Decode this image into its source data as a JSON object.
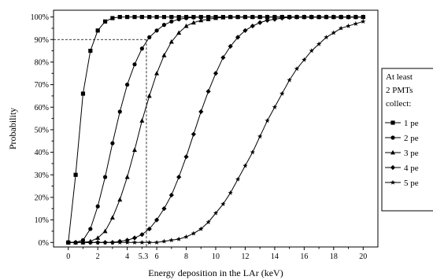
{
  "chart_data": {
    "type": "line",
    "xlabel": "Energy deposition in the LAr (keV)",
    "ylabel": "Probability",
    "xlim": [
      -1,
      21
    ],
    "ylim": [
      -0.02,
      1.03
    ],
    "xticks": [
      "0",
      "2",
      "4",
      "6",
      "8",
      "10",
      "12",
      "14",
      "16",
      "18",
      "20"
    ],
    "yticks": [
      "0%",
      "10%",
      "20%",
      "30%",
      "40%",
      "50%",
      "60%",
      "70%",
      "80%",
      "90%",
      "100%"
    ],
    "annotation": {
      "x": 5.3,
      "y": 0.9,
      "x_label": "5.3",
      "style": "dashed"
    },
    "legend": {
      "title_lines": [
        "At least",
        "2 PMTs",
        "collect:"
      ],
      "placement": "right"
    },
    "x": [
      0,
      0.5,
      1,
      1.5,
      2,
      2.5,
      3,
      3.5,
      4,
      4.5,
      5,
      5.5,
      6,
      6.5,
      7,
      7.5,
      8,
      8.5,
      9,
      9.5,
      10,
      10.5,
      11,
      11.5,
      12,
      12.5,
      13,
      13.5,
      14,
      14.5,
      15,
      15.5,
      16,
      16.5,
      17,
      17.5,
      18,
      18.5,
      19,
      19.5,
      20
    ],
    "series": [
      {
        "name": "1 pe",
        "marker": "square",
        "values": [
          0,
          0.3,
          0.66,
          0.85,
          0.94,
          0.98,
          0.995,
          1,
          1,
          1,
          1,
          1,
          1,
          1,
          1,
          1,
          1,
          1,
          1,
          1,
          1,
          1,
          1,
          1,
          1,
          1,
          1,
          1,
          1,
          1,
          1,
          1,
          1,
          1,
          1,
          1,
          1,
          1,
          1,
          1,
          1
        ]
      },
      {
        "name": "2 pe",
        "marker": "circle",
        "values": [
          0,
          0,
          0.01,
          0.06,
          0.16,
          0.29,
          0.44,
          0.58,
          0.7,
          0.79,
          0.86,
          0.91,
          0.94,
          0.965,
          0.98,
          0.99,
          0.995,
          0.998,
          1,
          1,
          1,
          1,
          1,
          1,
          1,
          1,
          1,
          1,
          1,
          1,
          1,
          1,
          1,
          1,
          1,
          1,
          1,
          1,
          1,
          1,
          1
        ]
      },
      {
        "name": "3 pe",
        "marker": "triangle",
        "values": [
          0,
          0,
          0,
          0.005,
          0.02,
          0.05,
          0.11,
          0.19,
          0.29,
          0.41,
          0.54,
          0.65,
          0.75,
          0.83,
          0.89,
          0.93,
          0.96,
          0.975,
          0.985,
          0.99,
          0.995,
          0.998,
          1,
          1,
          1,
          1,
          1,
          1,
          1,
          1,
          1,
          1,
          1,
          1,
          1,
          1,
          1,
          1,
          1,
          1,
          1
        ]
      },
      {
        "name": "4 pe",
        "marker": "diamond",
        "values": [
          0,
          0,
          0,
          0,
          0,
          0,
          0,
          0.005,
          0.01,
          0.02,
          0.035,
          0.06,
          0.1,
          0.15,
          0.21,
          0.29,
          0.38,
          0.48,
          0.58,
          0.67,
          0.75,
          0.82,
          0.87,
          0.91,
          0.94,
          0.96,
          0.975,
          0.985,
          0.99,
          0.995,
          0.998,
          1,
          1,
          1,
          1,
          1,
          1,
          1,
          1,
          1,
          1
        ]
      },
      {
        "name": "5 pe",
        "marker": "star",
        "values": [
          0,
          0,
          0,
          0,
          0,
          0,
          0,
          0,
          0,
          0,
          0,
          0,
          0,
          0.005,
          0.01,
          0.015,
          0.025,
          0.04,
          0.06,
          0.09,
          0.13,
          0.17,
          0.22,
          0.28,
          0.34,
          0.4,
          0.47,
          0.54,
          0.6,
          0.66,
          0.72,
          0.77,
          0.81,
          0.85,
          0.88,
          0.91,
          0.93,
          0.95,
          0.96,
          0.97,
          0.98
        ]
      }
    ]
  }
}
